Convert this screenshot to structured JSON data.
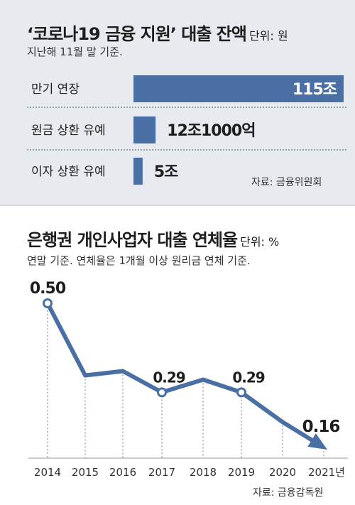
{
  "top_panel": {
    "title": "‘코로나19 금융 지원’ 대출 잔액",
    "unit": "단위: 원",
    "subtitle": "지난해 11월 말 기준.",
    "source": "자료: 금융위원회"
  },
  "bottom_panel": {
    "title": "은행권 개인사업자 대출 연체율",
    "unit": "단위: %",
    "subtitle": "연말 기준. 연체율은 1개월 이상 원리금 연체 기준.",
    "source": "자료: 금융감독원"
  },
  "colors": {
    "bar": "#4a6fa5",
    "line": "#4a6fa5",
    "top_background": "#e7ebef"
  },
  "chart_data": [
    {
      "type": "bar",
      "orientation": "horizontal",
      "title": "‘코로나19 금융 지원’ 대출 잔액",
      "unit": "원",
      "categories": [
        "만기 연장",
        "원금 상환 유예",
        "이자 상환 유예"
      ],
      "values": [
        115,
        12.1,
        5
      ],
      "value_labels": [
        "115조",
        "12조1000억",
        "5조"
      ],
      "xlim": [
        0,
        115
      ]
    },
    {
      "type": "line",
      "title": "은행권 개인사업자 대출 연체율",
      "unit": "%",
      "x": [
        "2014",
        "2015",
        "2016",
        "2017",
        "2018",
        "2019",
        "2020",
        "2021년"
      ],
      "values": [
        0.5,
        0.33,
        0.34,
        0.29,
        0.32,
        0.29,
        0.22,
        0.16
      ],
      "labeled_points": [
        {
          "index": 0,
          "label": "0.50"
        },
        {
          "index": 3,
          "label": "0.29"
        },
        {
          "index": 5,
          "label": "0.29"
        },
        {
          "index": 7,
          "label": "0.16"
        }
      ],
      "ylim": [
        0,
        0.55
      ],
      "grid": "vertical-dotted"
    }
  ]
}
